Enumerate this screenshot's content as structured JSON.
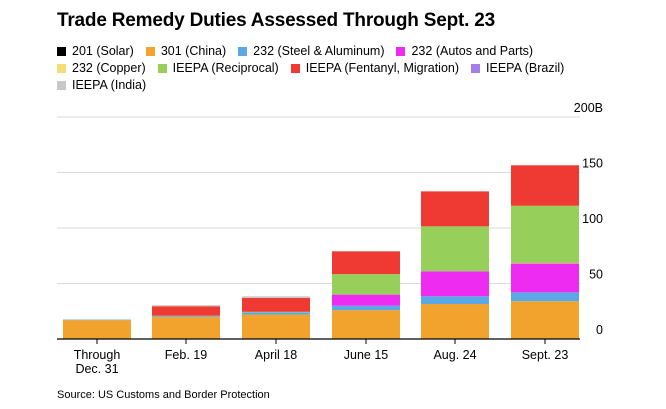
{
  "chart_data": {
    "type": "bar",
    "stacked": true,
    "title": "Trade Remedy Duties Assessed Through Sept. 23",
    "source": "Source: US Customs and Border Protection",
    "categories": [
      "Through\nDec. 31",
      "Feb. 19",
      "April 18",
      "June 15",
      "Aug. 24",
      "Sept. 23"
    ],
    "category_lines": [
      [
        "Through",
        "Dec. 31"
      ],
      [
        "Feb. 19"
      ],
      [
        "April 18"
      ],
      [
        "June 15"
      ],
      [
        "Aug. 24"
      ],
      [
        "Sept. 23"
      ]
    ],
    "yticks": [
      {
        "value": 0,
        "label": "0"
      },
      {
        "value": 50,
        "label": "50"
      },
      {
        "value": 100,
        "label": "100"
      },
      {
        "value": 150,
        "label": "150"
      },
      {
        "value": 200,
        "label": "200B"
      }
    ],
    "ylim": [
      0,
      200
    ],
    "grid": true,
    "legend_position": "top",
    "series": [
      {
        "name": "201 (Solar)",
        "color": "#000000",
        "values": [
          0.5,
          0.5,
          0.5,
          0.5,
          0.5,
          0.5
        ]
      },
      {
        "name": "301 (China)",
        "color": "#f2a32e",
        "values": [
          16.5,
          19.5,
          21.5,
          25.5,
          31,
          33.5
        ]
      },
      {
        "name": "232 (Steel & Aluminum)",
        "color": "#5aa9e6",
        "values": [
          0.5,
          1,
          2,
          4,
          7,
          8
        ]
      },
      {
        "name": "232 (Autos and Parts)",
        "color": "#ee2bf0",
        "values": [
          0,
          0,
          0,
          10,
          22.5,
          26
        ]
      },
      {
        "name": "232 (Copper)",
        "color": "#f5de7a",
        "values": [
          0,
          0,
          0,
          0,
          0,
          0.5
        ]
      },
      {
        "name": "IEEPA (Reciprocal)",
        "color": "#96cf5a",
        "values": [
          0,
          0,
          0.5,
          18.5,
          40.5,
          51.5
        ]
      },
      {
        "name": "IEEPA (Fentanyl, Migration)",
        "color": "#ef3a33",
        "values": [
          0,
          8.5,
          12.5,
          20.5,
          31.5,
          36.5
        ]
      },
      {
        "name": "IEEPA (Brazil)",
        "color": "#a57ee8",
        "values": [
          0,
          0,
          0,
          0,
          0,
          0
        ]
      },
      {
        "name": "IEEPA (India)",
        "color": "#c8c8c8",
        "values": [
          0,
          1,
          1.5,
          0,
          0,
          0
        ]
      }
    ]
  },
  "legend_rows": [
    [
      0,
      1,
      2,
      3
    ],
    [
      4,
      5,
      6,
      7
    ],
    [
      8
    ]
  ]
}
